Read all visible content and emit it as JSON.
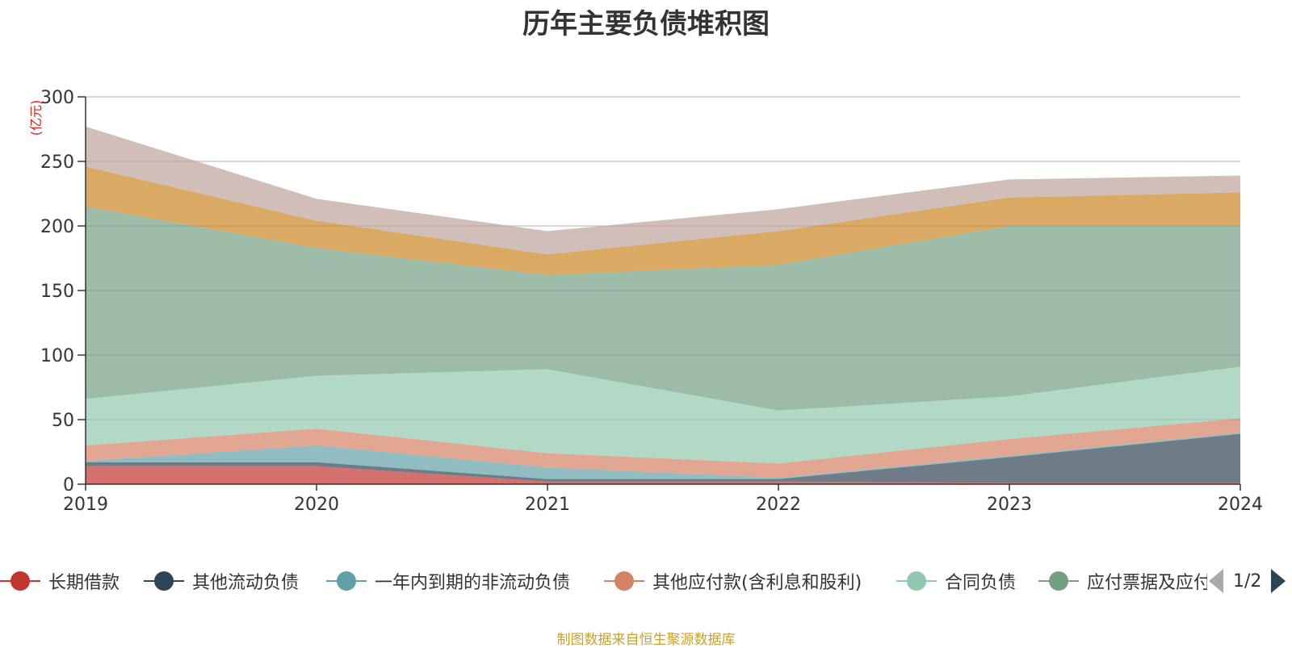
{
  "title": "历年主要负债堆积图",
  "source_note": "制图数据来自恒生聚源数据库",
  "legend_page": "1/2",
  "chart_data": {
    "type": "area",
    "stacked": true,
    "title": "历年主要负债堆积图",
    "ylabel": "(亿元)",
    "xlabel": "",
    "ylim": [
      0,
      300
    ],
    "yticks": [
      0,
      50,
      100,
      150,
      200,
      250,
      300
    ],
    "x": [
      "2019",
      "2020",
      "2021",
      "2022",
      "2023",
      "2024"
    ],
    "grid": true,
    "legend_position": "bottom",
    "series": [
      {
        "name": "长期借款",
        "color": "#c23531",
        "values": [
          14,
          14,
          2,
          2,
          1,
          1
        ]
      },
      {
        "name": "其他流动负债",
        "color": "#2f4554",
        "values": [
          3,
          3,
          2,
          2,
          20,
          38
        ]
      },
      {
        "name": "一年内到期的非流动负债",
        "color": "#61a0a8",
        "values": [
          1,
          13,
          9,
          1,
          1,
          1
        ]
      },
      {
        "name": "其他应付款(含利息和股利)",
        "color": "#d48265",
        "values": [
          12,
          13,
          11,
          11,
          13,
          11
        ]
      },
      {
        "name": "合同负债",
        "color": "#91c7ae",
        "values": [
          36,
          41,
          65,
          41,
          33,
          40
        ]
      },
      {
        "name": "应付票据及应付账款",
        "color": "#749f83",
        "values": [
          149,
          99,
          73,
          113,
          132,
          109
        ]
      },
      {
        "name": "",
        "color": "#ca8622",
        "values": [
          31,
          21,
          16,
          26,
          22,
          26
        ]
      },
      {
        "name": "",
        "color": "#bda29a",
        "values": [
          31,
          17,
          18,
          17,
          14,
          13
        ]
      }
    ],
    "legend_visible": [
      {
        "name": "长期借款",
        "color": "#c23531"
      },
      {
        "name": "其他流动负债",
        "color": "#2f4554"
      },
      {
        "name": "一年内到期的非流动负债",
        "color": "#61a0a8"
      },
      {
        "name": "其他应付款(含利息和股利)",
        "color": "#d48265"
      },
      {
        "name": "合同负债",
        "color": "#91c7ae"
      },
      {
        "name": "应付票据及应付账款",
        "color": "#749f83"
      }
    ]
  }
}
